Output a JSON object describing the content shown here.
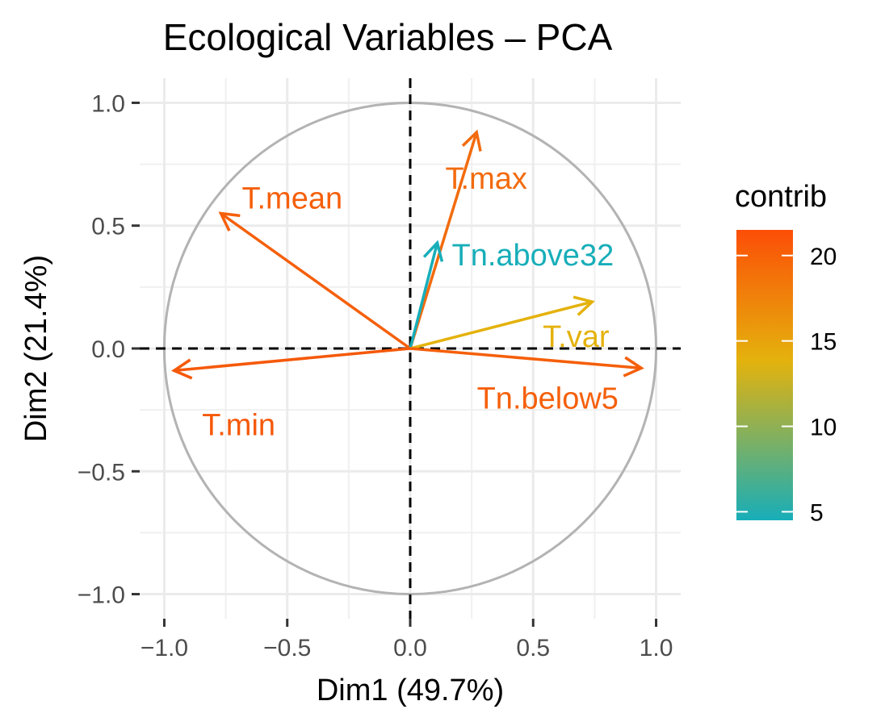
{
  "chart_data": {
    "type": "scatter",
    "subtype": "pca-variable-correlation-circle",
    "title": "Ecological Variables – PCA",
    "xlabel": "Dim1 (49.7%)",
    "ylabel": "Dim2 (21.4%)",
    "xlim": [
      -1.1,
      1.1
    ],
    "ylim": [
      -1.1,
      1.1
    ],
    "x_ticks": [
      -1.0,
      -0.5,
      0.0,
      0.5,
      1.0
    ],
    "y_ticks": [
      -1.0,
      -0.5,
      0.0,
      0.5,
      1.0
    ],
    "x_tick_labels": [
      "−1.0",
      "−0.5",
      "0.0",
      "0.5",
      "1.0"
    ],
    "y_tick_labels": [
      "−1.0",
      "−0.5",
      "0.0",
      "0.5",
      "1.0"
    ],
    "grid": true,
    "unit_circle": true,
    "variables": [
      {
        "name": "T.mean",
        "x": -0.77,
        "y": 0.55,
        "contrib": 20.5,
        "color": "#F55F0A"
      },
      {
        "name": "T.max",
        "x": 0.27,
        "y": 0.88,
        "contrib": 18.5,
        "color": "#F26B0E"
      },
      {
        "name": "Tn.above32",
        "x": 0.11,
        "y": 0.43,
        "contrib": 4.8,
        "color": "#17AEB9"
      },
      {
        "name": "T.var",
        "x": 0.74,
        "y": 0.19,
        "contrib": 14.0,
        "color": "#E4B20D"
      },
      {
        "name": "T.min",
        "x": -0.96,
        "y": -0.09,
        "contrib": 21.0,
        "color": "#F5590A"
      },
      {
        "name": "Tn.below5",
        "x": 0.94,
        "y": -0.08,
        "contrib": 20.5,
        "color": "#F55F0A"
      }
    ],
    "legend": {
      "title": "contrib",
      "placement": "right",
      "range": [
        4.5,
        21.5
      ],
      "ticks": [
        20,
        15,
        10,
        5
      ],
      "tick_labels": [
        "20",
        "15",
        "10",
        "5"
      ],
      "gradient_colors": [
        "#17AEB9",
        "#E4B20D",
        "#FC4E07"
      ]
    }
  }
}
